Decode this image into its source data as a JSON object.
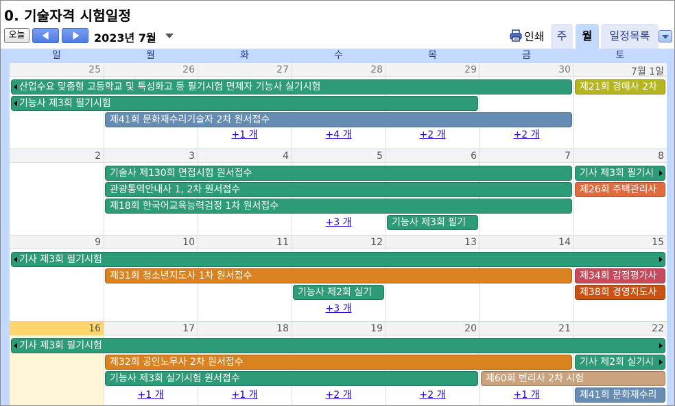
{
  "title": "0. 기술자격 시험일정",
  "toolbar": {
    "today_label": "오늘",
    "prev_icon": "chevron-left-icon",
    "next_icon": "chevron-right-icon",
    "month_label": "2023년 7월",
    "print_label": "인쇄",
    "tabs": [
      {
        "label": "주",
        "active": false
      },
      {
        "label": "월",
        "active": true
      },
      {
        "label": "일정목록",
        "active": false
      }
    ]
  },
  "weekdays": [
    "일",
    "월",
    "화",
    "수",
    "목",
    "금",
    "토"
  ],
  "colors": {
    "green": "#2e9b78",
    "blue": "#668cb3",
    "olive": "#b5b520",
    "orange": "#d9821f",
    "coral": "#e06b3e",
    "rose": "#c54a5b",
    "rust": "#c75214",
    "tan": "#c9a27e",
    "accent": "#c3d9ff"
  },
  "weeks": [
    {
      "days": [
        "25",
        "26",
        "27",
        "28",
        "29",
        "30",
        "7월 1일"
      ],
      "other_month": [
        true,
        true,
        true,
        true,
        true,
        true,
        false
      ],
      "today": -1,
      "events": [
        {
          "label": "산업수요 맞춤형 고등학교 및 특성화고 등 필기시험 면제자 기능사 실기시험",
          "start": 0,
          "end": 5,
          "row": 0,
          "color": "green",
          "cont_left": true,
          "cont_right": false
        },
        {
          "label": "제21회 경매사 2차",
          "start": 6,
          "end": 6,
          "row": 0,
          "color": "olive",
          "cont_left": false,
          "cont_right": false
        },
        {
          "label": "기능사 제3회 필기시험",
          "start": 0,
          "end": 4,
          "row": 1,
          "color": "green",
          "cont_left": true,
          "cont_right": false
        },
        {
          "label": "제41회 문화재수리기술자 2차 원서접수",
          "start": 1,
          "end": 5,
          "row": 2,
          "color": "blue",
          "cont_left": false,
          "cont_right": false
        }
      ],
      "more": [
        {
          "label": "+1 개",
          "col": 2
        },
        {
          "label": "+4 개",
          "col": 3
        },
        {
          "label": "+2 개",
          "col": 4
        },
        {
          "label": "+2 개",
          "col": 5
        }
      ]
    },
    {
      "days": [
        "2",
        "3",
        "4",
        "5",
        "6",
        "7",
        "8"
      ],
      "other_month": [
        false,
        false,
        false,
        false,
        false,
        false,
        false
      ],
      "today": -1,
      "events": [
        {
          "label": "기술사 제130회 면접시험 원서접수",
          "start": 1,
          "end": 5,
          "row": 0,
          "color": "green",
          "cont_left": false,
          "cont_right": false
        },
        {
          "label": "기사 제3회 필기시",
          "start": 6,
          "end": 6,
          "row": 0,
          "color": "green",
          "cont_left": false,
          "cont_right": true
        },
        {
          "label": "관광통역안내사 1, 2차 원서접수",
          "start": 1,
          "end": 5,
          "row": 1,
          "color": "green",
          "cont_left": false,
          "cont_right": false
        },
        {
          "label": "제26회 주택관리사",
          "start": 6,
          "end": 6,
          "row": 1,
          "color": "coral",
          "cont_left": false,
          "cont_right": false
        },
        {
          "label": "제18회 한국어교육능력검정 1차 원서접수",
          "start": 1,
          "end": 5,
          "row": 2,
          "color": "green",
          "cont_left": false,
          "cont_right": false
        },
        {
          "label": "기능사 제3회 필기",
          "start": 4,
          "end": 4,
          "row": 3,
          "color": "green",
          "cont_left": false,
          "cont_right": false
        }
      ],
      "more": [
        {
          "label": "+3 개",
          "col": 3
        }
      ]
    },
    {
      "days": [
        "9",
        "10",
        "11",
        "12",
        "13",
        "14",
        "15"
      ],
      "other_month": [
        false,
        false,
        false,
        false,
        false,
        false,
        false
      ],
      "today": -1,
      "events": [
        {
          "label": "기사 제3회 필기시험",
          "start": 0,
          "end": 6,
          "row": 0,
          "color": "green",
          "cont_left": true,
          "cont_right": true
        },
        {
          "label": "제31회 청소년지도사 1차 원서접수",
          "start": 1,
          "end": 5,
          "row": 1,
          "color": "orange",
          "cont_left": false,
          "cont_right": false
        },
        {
          "label": "제34회 감정평가사",
          "start": 6,
          "end": 6,
          "row": 1,
          "color": "rose",
          "cont_left": false,
          "cont_right": false
        },
        {
          "label": "기능사 제2회 실기",
          "start": 3,
          "end": 3,
          "row": 2,
          "color": "green",
          "cont_left": false,
          "cont_right": false
        },
        {
          "label": "제38회 경영지도사",
          "start": 6,
          "end": 6,
          "row": 2,
          "color": "rust",
          "cont_left": false,
          "cont_right": false
        }
      ],
      "more": [
        {
          "label": "+3 개",
          "col": 3
        }
      ]
    },
    {
      "days": [
        "16",
        "17",
        "18",
        "19",
        "20",
        "21",
        "22"
      ],
      "other_month": [
        false,
        false,
        false,
        false,
        false,
        false,
        false
      ],
      "today": 0,
      "events": [
        {
          "label": "기사 제3회 필기시험",
          "start": 0,
          "end": 6,
          "row": 0,
          "color": "green",
          "cont_left": true,
          "cont_right": true
        },
        {
          "label": "제32회 공인노무사 2차 원서접수",
          "start": 1,
          "end": 5,
          "row": 1,
          "color": "orange",
          "cont_left": false,
          "cont_right": false
        },
        {
          "label": "기사 제2회 실기시",
          "start": 6,
          "end": 6,
          "row": 1,
          "color": "green",
          "cont_left": false,
          "cont_right": true
        },
        {
          "label": "기능사 제3회 실기시험 원서접수",
          "start": 1,
          "end": 4,
          "row": 2,
          "color": "green",
          "cont_left": false,
          "cont_right": false
        },
        {
          "label": "제60회 변리사 2차 시험",
          "start": 5,
          "end": 6,
          "row": 2,
          "color": "tan",
          "cont_left": false,
          "cont_right": false
        },
        {
          "label": "제41회 문화재수리",
          "start": 6,
          "end": 6,
          "row": 3,
          "color": "blue",
          "cont_left": false,
          "cont_right": false
        }
      ],
      "more": [
        {
          "label": "+1 개",
          "col": 1
        },
        {
          "label": "+1 개",
          "col": 2
        },
        {
          "label": "+2 개",
          "col": 3
        },
        {
          "label": "+2 개",
          "col": 4
        },
        {
          "label": "+1 개",
          "col": 5
        }
      ]
    }
  ]
}
